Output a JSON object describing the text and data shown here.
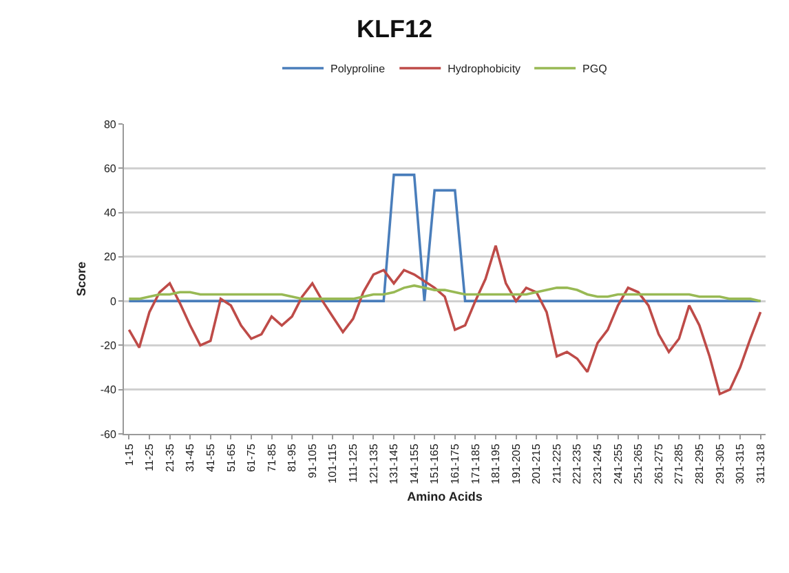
{
  "chart_data": {
    "type": "line",
    "title": "KLF12",
    "xlabel": "Amino Acids",
    "ylabel": "Score",
    "categories": [
      "1-15",
      null,
      "11-25",
      null,
      "21-35",
      null,
      "31-45",
      null,
      "41-55",
      null,
      "51-65",
      null,
      "61-75",
      null,
      "71-85",
      null,
      "81-95",
      null,
      "91-105",
      null,
      "101-115",
      null,
      "111-125",
      null,
      "121-135",
      null,
      "131-145",
      null,
      "141-155",
      null,
      "151-165",
      null,
      "161-175",
      null,
      "171-185",
      null,
      "181-195",
      null,
      "191-205",
      null,
      "201-215",
      null,
      "211-225",
      null,
      "221-235",
      null,
      "231-245",
      null,
      "241-255",
      null,
      "251-265",
      null,
      "261-275",
      null,
      "271-285",
      null,
      "281-295",
      null,
      "291-305",
      null,
      "301-315",
      null,
      "311-318"
    ],
    "series": [
      {
        "name": "Polyproline",
        "color": "#4a7ebb",
        "values": [
          0,
          0,
          0,
          0,
          0,
          0,
          0,
          0,
          0,
          0,
          0,
          0,
          0,
          0,
          0,
          0,
          0,
          0,
          0,
          0,
          0,
          0,
          0,
          0,
          0,
          0,
          57,
          57,
          57,
          0,
          50,
          50,
          50,
          0,
          0,
          0,
          0,
          0,
          0,
          0,
          0,
          0,
          0,
          0,
          0,
          0,
          0,
          0,
          0,
          0,
          0,
          0,
          0,
          0,
          0,
          0,
          0,
          0,
          0,
          0,
          0,
          0,
          0
        ]
      },
      {
        "name": "Hydrophobicity",
        "color": "#be4b48",
        "values": [
          -13,
          -21,
          -5,
          4,
          8,
          -1,
          -11,
          -20,
          -18,
          1,
          -2,
          -11,
          -17,
          -15,
          -7,
          -11,
          -7,
          2,
          8,
          0,
          -7,
          -14,
          -8,
          4,
          12,
          14,
          8,
          14,
          12,
          9,
          6,
          2,
          -13,
          -11,
          0,
          10,
          25,
          8,
          0,
          6,
          4,
          -5,
          -25,
          -23,
          -26,
          -32,
          -19,
          -13,
          -2,
          6,
          4,
          -2,
          -15,
          -23,
          -17,
          -2,
          -11,
          -25,
          -42,
          -40,
          -30,
          -17,
          -5
        ]
      },
      {
        "name": "PGQ",
        "color": "#98b954",
        "values": [
          1,
          1,
          2,
          3,
          3,
          4,
          4,
          3,
          3,
          3,
          3,
          3,
          3,
          3,
          3,
          3,
          2,
          1,
          1,
          1,
          1,
          1,
          1,
          2,
          3,
          3,
          4,
          6,
          7,
          6,
          5,
          5,
          4,
          3,
          3,
          3,
          3,
          3,
          3,
          3,
          4,
          5,
          6,
          6,
          5,
          3,
          2,
          2,
          3,
          3,
          3,
          3,
          3,
          3,
          3,
          3,
          2,
          2,
          2,
          1,
          1,
          1,
          0
        ]
      }
    ],
    "ylim": [
      -60,
      80
    ],
    "yticks": [
      -60,
      -40,
      -20,
      0,
      20,
      40,
      60,
      80
    ],
    "grid": "y",
    "legend": "top"
  }
}
